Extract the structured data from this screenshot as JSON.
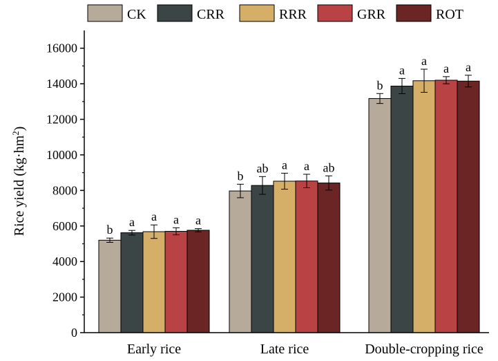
{
  "chart_data": {
    "type": "bar",
    "title": "",
    "xlabel": "",
    "ylabel": "Rice yield (kg·hm",
    "ylabel_sup": "2",
    "ylabel_close": ")",
    "ylim": [
      0,
      17000
    ],
    "yticks": [
      0,
      2000,
      4000,
      6000,
      8000,
      10000,
      12000,
      14000,
      16000
    ],
    "grid": false,
    "legend_position": "top",
    "categories": [
      "Early rice",
      "Late rice",
      "Double-cropping rice"
    ],
    "series": [
      {
        "name": "CK",
        "color": "#b6aa9b",
        "values": [
          5200,
          7970,
          13170
        ],
        "errors": [
          120,
          380,
          280
        ],
        "letters": [
          "b",
          "b",
          "b"
        ]
      },
      {
        "name": "CRR",
        "color": "#3b4546",
        "values": [
          5620,
          8280,
          13870
        ],
        "errors": [
          130,
          500,
          430
        ],
        "letters": [
          "a",
          "ab",
          "a"
        ]
      },
      {
        "name": "RRR",
        "color": "#d5ae68",
        "values": [
          5680,
          8520,
          14170
        ],
        "errors": [
          380,
          450,
          650
        ],
        "letters": [
          "a",
          "a",
          "a"
        ]
      },
      {
        "name": "GRR",
        "color": "#b94244",
        "values": [
          5700,
          8530,
          14200
        ],
        "errors": [
          200,
          380,
          200
        ],
        "letters": [
          "a",
          "a",
          "a"
        ]
      },
      {
        "name": "ROT",
        "color": "#6a2524",
        "values": [
          5760,
          8420,
          14150
        ],
        "errors": [
          90,
          400,
          330
        ],
        "letters": [
          "a",
          "ab",
          "a"
        ]
      }
    ]
  }
}
